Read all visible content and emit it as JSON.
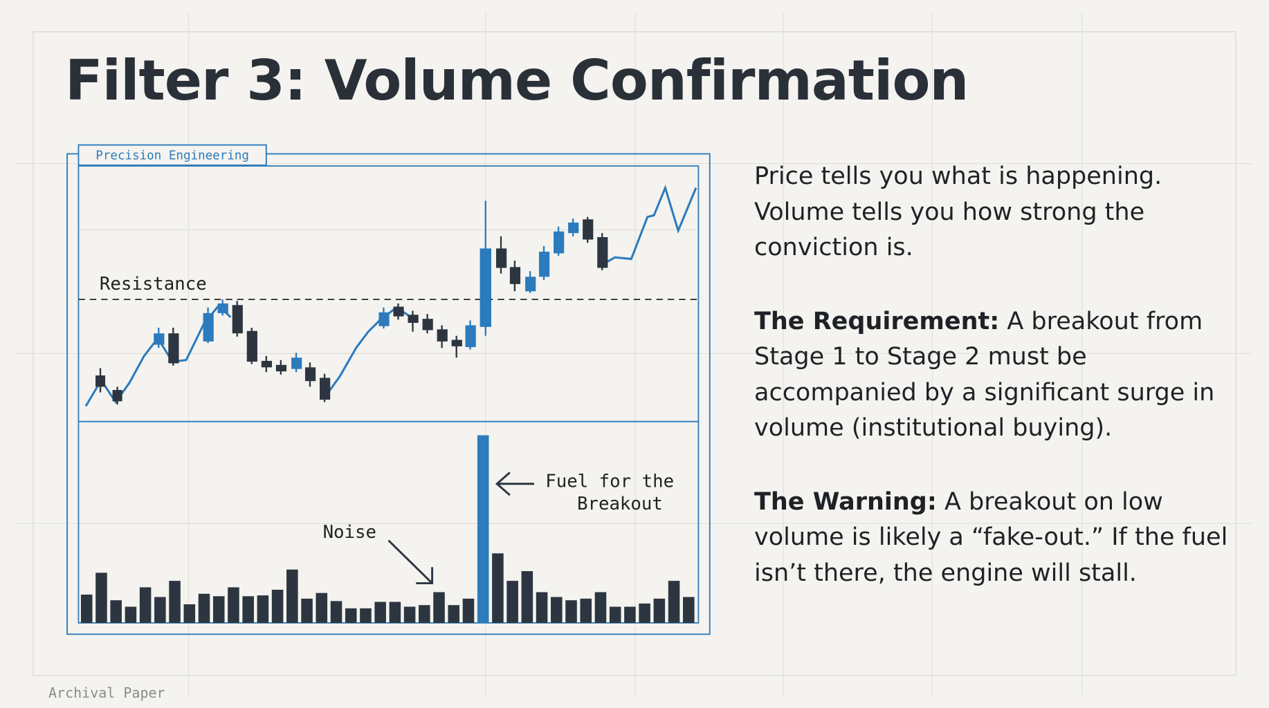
{
  "title": "Filter 3: Volume Confirmation",
  "figure": {
    "tag": "Precision Engineering",
    "resistance_label": "Resistance",
    "callout_fuel": [
      "Fuel for the",
      "Breakout"
    ],
    "callout_noise": "Noise",
    "volume": [
      35,
      62,
      28,
      20,
      44,
      32,
      52,
      23,
      36,
      33,
      44,
      33,
      34,
      41,
      66,
      30,
      37,
      27,
      18,
      18,
      26,
      26,
      20,
      22,
      38,
      22,
      30,
      232,
      86,
      52,
      64,
      38,
      32,
      28,
      30,
      38,
      20,
      20,
      24,
      30,
      52,
      32
    ],
    "bar_color": "#2d3640",
    "highlight_color": "#2b7bbd",
    "highlight_bar": 27
  },
  "paragraphs": [
    {
      "text": "Price tells you what is happening. Volume tells you how strong the conviction is."
    },
    {
      "lead": "The Requirement:",
      "text": " A breakout from Stage 1 to Stage 2 must be accompanied by a significant surge in volume (institutional buying)."
    },
    {
      "lead": "The Warning:",
      "text": " A breakout on low volume is likely a “fake-out.” If the fuel isn’t there, the engine will stall."
    }
  ],
  "footer": "Archival Paper"
}
